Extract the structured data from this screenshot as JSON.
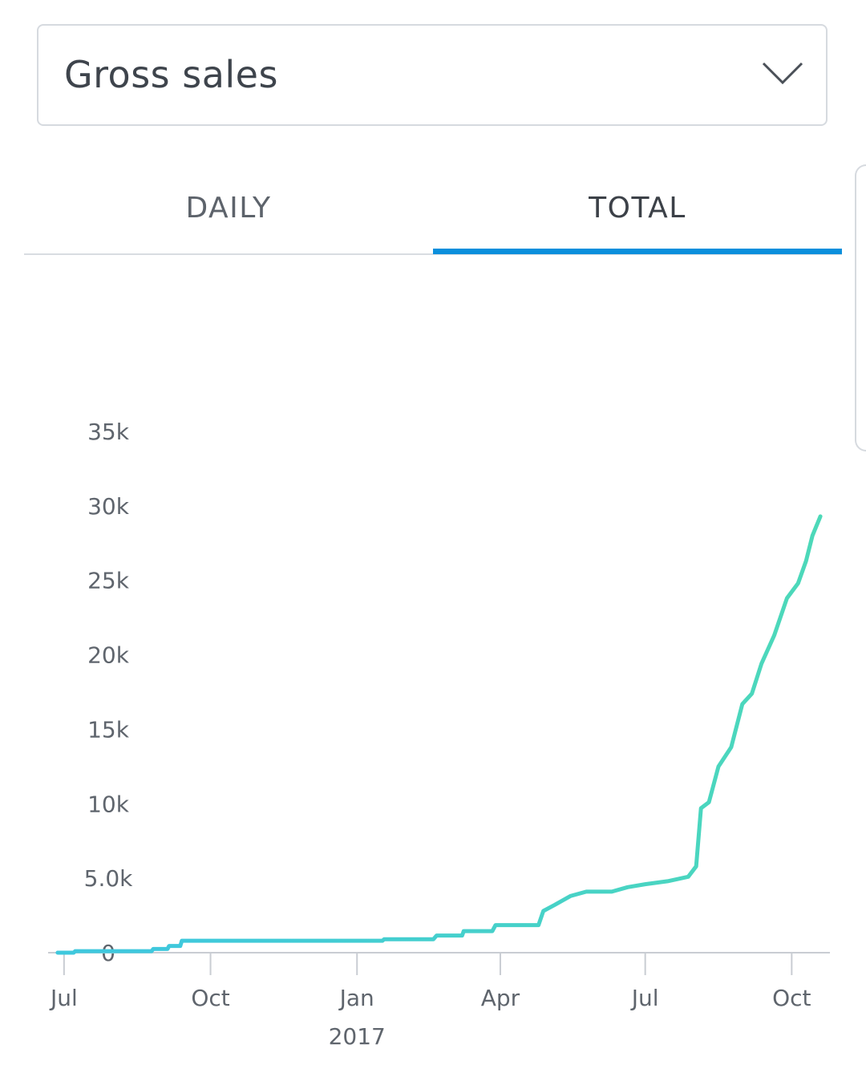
{
  "metric_selector": {
    "selected": "Gross sales",
    "chevron_icon": "chevron-down-icon"
  },
  "tabs": [
    {
      "label": "DAILY",
      "active": false
    },
    {
      "label": "TOTAL",
      "active": true
    }
  ],
  "colors": {
    "accent": "#0a8fdc",
    "line_start": "#3fc8dd",
    "line_end": "#4dd9b8",
    "axis": "#c9cdd3"
  },
  "chart_data": {
    "type": "line",
    "y_ticks": [
      "0",
      "5.0k",
      "10k",
      "15k",
      "20k",
      "25k",
      "30k",
      "35k"
    ],
    "y_tick_values": [
      0,
      5000,
      10000,
      15000,
      20000,
      25000,
      30000,
      35000
    ],
    "ylim": [
      0,
      35000
    ],
    "x_ticks": [
      {
        "label": "Jul",
        "date": "2016-07-01"
      },
      {
        "label": "Oct",
        "date": "2016-10-01"
      },
      {
        "label": "Jan",
        "date": "2017-01-01"
      },
      {
        "label": "Apr",
        "date": "2017-04-01"
      },
      {
        "label": "Jul",
        "date": "2017-07-01"
      },
      {
        "label": "Oct",
        "date": "2017-10-01"
      }
    ],
    "x_sublabel": {
      "label": "2017",
      "date": "2017-01-01"
    },
    "xlim": [
      "2016-06-21",
      "2017-10-25"
    ],
    "grid": false,
    "series": [
      {
        "values": [
          [
            "2016-06-27",
            0
          ],
          [
            "2016-07-07",
            0
          ],
          [
            "2016-07-08",
            100
          ],
          [
            "2016-08-25",
            100
          ],
          [
            "2016-08-26",
            250
          ],
          [
            "2016-09-04",
            250
          ],
          [
            "2016-09-05",
            450
          ],
          [
            "2016-09-12",
            450
          ],
          [
            "2016-09-13",
            800
          ],
          [
            "2017-01-17",
            800
          ],
          [
            "2017-01-18",
            900
          ],
          [
            "2017-02-18",
            900
          ],
          [
            "2017-02-20",
            1150
          ],
          [
            "2017-03-08",
            1150
          ],
          [
            "2017-03-09",
            1450
          ],
          [
            "2017-03-27",
            1450
          ],
          [
            "2017-03-29",
            1850
          ],
          [
            "2017-04-25",
            1850
          ],
          [
            "2017-04-28",
            2800
          ],
          [
            "2017-05-05",
            3200
          ],
          [
            "2017-05-15",
            3800
          ],
          [
            "2017-05-25",
            4100
          ],
          [
            "2017-06-10",
            4100
          ],
          [
            "2017-06-20",
            4400
          ],
          [
            "2017-07-01",
            4600
          ],
          [
            "2017-07-15",
            4800
          ],
          [
            "2017-07-28",
            5100
          ],
          [
            "2017-08-02",
            5800
          ],
          [
            "2017-08-05",
            9700
          ],
          [
            "2017-08-10",
            10100
          ],
          [
            "2017-08-16",
            12500
          ],
          [
            "2017-08-24",
            13800
          ],
          [
            "2017-08-31",
            16700
          ],
          [
            "2017-09-06",
            17400
          ],
          [
            "2017-09-12",
            19400
          ],
          [
            "2017-09-20",
            21300
          ],
          [
            "2017-09-28",
            23800
          ],
          [
            "2017-10-05",
            24800
          ],
          [
            "2017-10-10",
            26300
          ],
          [
            "2017-10-14",
            28000
          ],
          [
            "2017-10-19",
            29300
          ]
        ]
      }
    ]
  }
}
